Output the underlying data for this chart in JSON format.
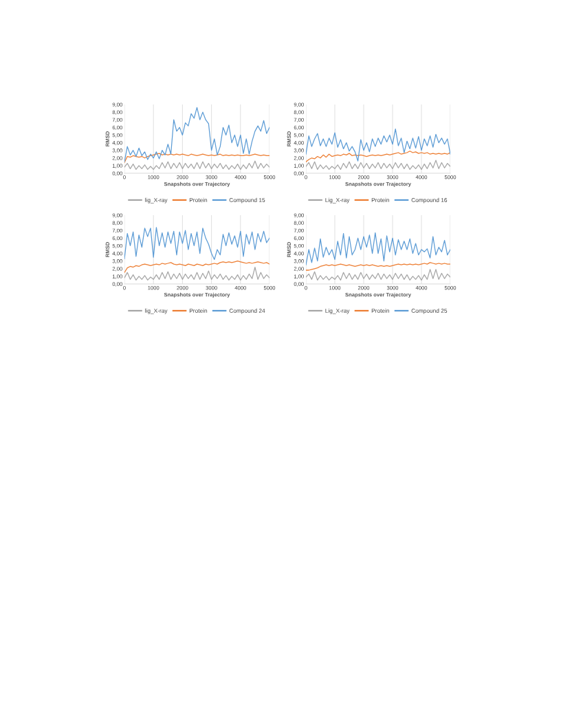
{
  "chart_data": [
    {
      "type": "line",
      "xlabel": "Snapshots over Trajectory",
      "ylabel": "RMSD",
      "x": [
        0,
        100,
        200,
        300,
        400,
        500,
        600,
        700,
        800,
        900,
        1000,
        1100,
        1200,
        1300,
        1400,
        1500,
        1600,
        1700,
        1800,
        1900,
        2000,
        2100,
        2200,
        2300,
        2400,
        2500,
        2600,
        2700,
        2800,
        2900,
        3000,
        3100,
        3200,
        3300,
        3400,
        3500,
        3600,
        3700,
        3800,
        3900,
        4000,
        4100,
        4200,
        4300,
        4400,
        4500,
        4600,
        4700,
        4800,
        4900,
        5000
      ],
      "xlim": [
        0,
        5000
      ],
      "xticks": [
        0,
        1000,
        2000,
        3000,
        4000,
        5000
      ],
      "ylim": [
        0,
        9
      ],
      "yticks": [
        {
          "value": 0,
          "label": "0,00"
        },
        {
          "value": 1,
          "label": "1,00"
        },
        {
          "value": 2,
          "label": "2,00"
        },
        {
          "value": 3,
          "label": "3,00"
        },
        {
          "value": 4,
          "label": "4,00"
        },
        {
          "value": 5,
          "label": "5,00"
        },
        {
          "value": 6,
          "label": "6,00"
        },
        {
          "value": 7,
          "label": "7,00"
        },
        {
          "value": 8,
          "label": "8,00"
        },
        {
          "value": 9,
          "label": "9,00"
        }
      ],
      "grid": "x",
      "legend": "bottom",
      "marker": "none",
      "line_style": "solid",
      "series": [
        {
          "name": "lig_X-ray",
          "color": "#a5a5a5",
          "values": [
            0.8,
            1.3,
            0.6,
            1.2,
            0.5,
            1.0,
            0.6,
            1.1,
            0.5,
            0.9,
            0.5,
            1.0,
            0.6,
            1.4,
            0.7,
            1.5,
            0.6,
            1.3,
            0.7,
            1.4,
            0.6,
            1.3,
            0.7,
            1.2,
            0.6,
            1.4,
            0.6,
            1.5,
            0.7,
            1.3,
            0.6,
            1.2,
            0.7,
            1.3,
            0.6,
            1.1,
            0.5,
            1.0,
            0.6,
            1.2,
            0.5,
            1.1,
            0.6,
            1.3,
            0.7,
            1.6,
            0.6,
            1.3,
            0.7,
            1.2,
            0.8
          ]
        },
        {
          "name": "Protein",
          "color": "#ed7d31",
          "values": [
            1.4,
            2.2,
            2.1,
            2.3,
            2.2,
            2.1,
            2.2,
            2.0,
            2.2,
            2.3,
            2.4,
            2.5,
            2.6,
            2.4,
            2.5,
            2.4,
            2.5,
            2.4,
            2.5,
            2.4,
            2.5,
            2.4,
            2.3,
            2.5,
            2.4,
            2.3,
            2.4,
            2.5,
            2.4,
            2.3,
            2.4,
            2.3,
            2.4,
            2.5,
            2.3,
            2.4,
            2.3,
            2.4,
            2.3,
            2.4,
            2.3,
            2.3,
            2.4,
            2.3,
            2.4,
            2.5,
            2.4,
            2.3,
            2.4,
            2.3,
            2.3
          ]
        },
        {
          "name": "Compound 15",
          "color": "#5b9bd5",
          "values": [
            1.5,
            3.5,
            2.4,
            3.0,
            2.2,
            3.3,
            2.3,
            2.8,
            1.8,
            2.5,
            2.0,
            2.8,
            1.9,
            3.0,
            2.4,
            3.8,
            2.5,
            7.0,
            5.5,
            6.0,
            5.0,
            6.6,
            6.2,
            7.8,
            7.2,
            8.6,
            7.0,
            8.0,
            7.0,
            6.5,
            3.0,
            4.5,
            2.4,
            3.5,
            6.0,
            5.0,
            6.3,
            4.0,
            5.0,
            3.5,
            5.0,
            2.6,
            4.5,
            2.5,
            4.2,
            5.5,
            6.2,
            5.5,
            6.9,
            5.2,
            6.0
          ]
        }
      ]
    },
    {
      "type": "line",
      "xlabel": "Snapshots over Trajectory",
      "ylabel": "RMSD",
      "x": [
        0,
        100,
        200,
        300,
        400,
        500,
        600,
        700,
        800,
        900,
        1000,
        1100,
        1200,
        1300,
        1400,
        1500,
        1600,
        1700,
        1800,
        1900,
        2000,
        2100,
        2200,
        2300,
        2400,
        2500,
        2600,
        2700,
        2800,
        2900,
        3000,
        3100,
        3200,
        3300,
        3400,
        3500,
        3600,
        3700,
        3800,
        3900,
        4000,
        4100,
        4200,
        4300,
        4400,
        4500,
        4600,
        4700,
        4800,
        4900,
        5000
      ],
      "xlim": [
        0,
        5000
      ],
      "xticks": [
        0,
        1000,
        2000,
        3000,
        4000,
        5000
      ],
      "ylim": [
        0,
        9
      ],
      "yticks": [
        {
          "value": 0,
          "label": "0,00"
        },
        {
          "value": 1,
          "label": "1,00"
        },
        {
          "value": 2,
          "label": "2,00"
        },
        {
          "value": 3,
          "label": "3,00"
        },
        {
          "value": 4,
          "label": "4,00"
        },
        {
          "value": 5,
          "label": "5,00"
        },
        {
          "value": 6,
          "label": "6,00"
        },
        {
          "value": 7,
          "label": "7,00"
        },
        {
          "value": 8,
          "label": "8,00"
        },
        {
          "value": 9,
          "label": "9,00"
        }
      ],
      "grid": "x",
      "legend": "bottom",
      "marker": "none",
      "line_style": "solid",
      "series": [
        {
          "name": "Lig_X-ray",
          "color": "#a5a5a5",
          "values": [
            0.9,
            1.4,
            0.6,
            1.5,
            0.5,
            1.1,
            0.6,
            1.0,
            0.5,
            0.9,
            0.6,
            1.1,
            0.5,
            1.3,
            0.7,
            1.5,
            0.6,
            1.2,
            0.6,
            1.4,
            0.7,
            1.3,
            0.6,
            1.2,
            0.7,
            1.4,
            0.6,
            1.3,
            0.7,
            1.2,
            0.6,
            1.4,
            0.7,
            1.3,
            0.6,
            1.2,
            0.5,
            1.0,
            0.6,
            1.1,
            0.5,
            1.2,
            0.6,
            1.4,
            0.7,
            1.7,
            0.6,
            1.4,
            0.7,
            1.3,
            0.9
          ]
        },
        {
          "name": "Protein",
          "color": "#ed7d31",
          "values": [
            1.5,
            1.8,
            2.0,
            1.9,
            2.2,
            2.0,
            2.4,
            2.1,
            2.5,
            2.2,
            2.3,
            2.4,
            2.3,
            2.5,
            2.4,
            2.6,
            2.3,
            2.4,
            2.3,
            2.4,
            2.3,
            2.2,
            2.3,
            2.4,
            2.3,
            2.4,
            2.3,
            2.4,
            2.5,
            2.4,
            2.5,
            2.6,
            2.7,
            2.5,
            2.6,
            2.7,
            2.9,
            2.7,
            2.8,
            2.6,
            2.7,
            2.6,
            2.7,
            2.5,
            2.6,
            2.5,
            2.6,
            2.5,
            2.6,
            2.5,
            2.7
          ]
        },
        {
          "name": "Compound 16",
          "color": "#5b9bd5",
          "values": [
            2.5,
            4.9,
            3.5,
            4.5,
            5.2,
            3.6,
            4.5,
            3.5,
            4.6,
            3.8,
            5.3,
            3.4,
            4.4,
            3.2,
            4.0,
            2.9,
            3.5,
            2.8,
            1.6,
            4.4,
            3.0,
            4.0,
            2.8,
            4.5,
            3.5,
            4.6,
            3.8,
            4.9,
            4.1,
            5.0,
            3.8,
            5.8,
            3.6,
            4.6,
            2.7,
            4.2,
            3.2,
            4.6,
            3.3,
            4.8,
            3.0,
            4.5,
            3.6,
            4.9,
            3.4,
            5.1,
            4.0,
            4.6,
            3.8,
            4.5,
            2.5
          ]
        }
      ]
    },
    {
      "type": "line",
      "xlabel": "Snapshots over Trajectory",
      "ylabel": "RMSD",
      "x": [
        0,
        100,
        200,
        300,
        400,
        500,
        600,
        700,
        800,
        900,
        1000,
        1100,
        1200,
        1300,
        1400,
        1500,
        1600,
        1700,
        1800,
        1900,
        2000,
        2100,
        2200,
        2300,
        2400,
        2500,
        2600,
        2700,
        2800,
        2900,
        3000,
        3100,
        3200,
        3300,
        3400,
        3500,
        3600,
        3700,
        3800,
        3900,
        4000,
        4100,
        4200,
        4300,
        4400,
        4500,
        4600,
        4700,
        4800,
        4900,
        5000
      ],
      "xlim": [
        0,
        5000
      ],
      "xticks": [
        0,
        1000,
        2000,
        3000,
        4000,
        5000
      ],
      "ylim": [
        0,
        9
      ],
      "yticks": [
        {
          "value": 0,
          "label": "0,00"
        },
        {
          "value": 1,
          "label": "1,00"
        },
        {
          "value": 2,
          "label": "2,00"
        },
        {
          "value": 3,
          "label": "3,00"
        },
        {
          "value": 4,
          "label": "4,00"
        },
        {
          "value": 5,
          "label": "5,00"
        },
        {
          "value": 6,
          "label": "6,00"
        },
        {
          "value": 7,
          "label": "7,00"
        },
        {
          "value": 8,
          "label": "8,00"
        },
        {
          "value": 9,
          "label": "9,00"
        }
      ],
      "grid": "x",
      "legend": "bottom",
      "marker": "none",
      "line_style": "solid",
      "series": [
        {
          "name": "lig_X-ray",
          "color": "#a5a5a5",
          "values": [
            0.8,
            1.5,
            0.6,
            1.2,
            0.5,
            1.0,
            0.6,
            1.1,
            0.5,
            0.9,
            0.6,
            1.2,
            0.6,
            1.5,
            0.7,
            1.6,
            0.6,
            1.3,
            0.7,
            1.4,
            0.6,
            1.3,
            0.7,
            1.2,
            0.6,
            1.5,
            0.6,
            1.4,
            0.7,
            1.7,
            0.6,
            1.2,
            0.7,
            1.3,
            0.6,
            1.1,
            0.5,
            1.0,
            0.6,
            1.2,
            0.5,
            1.1,
            0.6,
            1.3,
            0.7,
            2.2,
            0.6,
            1.5,
            0.7,
            1.2,
            0.8
          ]
        },
        {
          "name": "Protein",
          "color": "#ed7d31",
          "values": [
            1.5,
            2.1,
            2.3,
            2.2,
            2.4,
            2.3,
            2.5,
            2.6,
            2.5,
            2.4,
            2.5,
            2.6,
            2.5,
            2.7,
            2.6,
            2.7,
            2.8,
            2.6,
            2.5,
            2.6,
            2.5,
            2.4,
            2.6,
            2.5,
            2.4,
            2.6,
            2.5,
            2.4,
            2.6,
            2.5,
            2.6,
            2.7,
            2.6,
            2.8,
            2.9,
            2.8,
            2.9,
            2.8,
            2.9,
            3.0,
            2.9,
            2.8,
            2.7,
            2.8,
            2.7,
            2.8,
            2.9,
            2.8,
            2.7,
            2.8,
            2.6
          ]
        },
        {
          "name": "Compound 24",
          "color": "#5b9bd5",
          "values": [
            3.3,
            6.6,
            5.0,
            6.8,
            3.6,
            6.4,
            4.8,
            7.3,
            6.2,
            7.3,
            3.5,
            7.4,
            5.0,
            6.7,
            4.8,
            6.8,
            5.3,
            6.9,
            3.8,
            6.8,
            5.3,
            7.0,
            4.5,
            6.6,
            5.0,
            6.8,
            4.0,
            7.3,
            6.0,
            5.2,
            4.0,
            3.2,
            4.5,
            3.8,
            6.5,
            5.0,
            6.7,
            5.2,
            6.3,
            4.8,
            6.9,
            3.6,
            6.5,
            5.2,
            6.8,
            4.5,
            6.6,
            5.5,
            6.9,
            5.4,
            6.0
          ]
        }
      ]
    },
    {
      "type": "line",
      "xlabel": "Snapshots over Trajectory",
      "ylabel": "RMSD",
      "x": [
        0,
        100,
        200,
        300,
        400,
        500,
        600,
        700,
        800,
        900,
        1000,
        1100,
        1200,
        1300,
        1400,
        1500,
        1600,
        1700,
        1800,
        1900,
        2000,
        2100,
        2200,
        2300,
        2400,
        2500,
        2600,
        2700,
        2800,
        2900,
        3000,
        3100,
        3200,
        3300,
        3400,
        3500,
        3600,
        3700,
        3800,
        3900,
        4000,
        4100,
        4200,
        4300,
        4400,
        4500,
        4600,
        4700,
        4800,
        4900,
        5000
      ],
      "xlim": [
        0,
        5000
      ],
      "xticks": [
        0,
        1000,
        2000,
        3000,
        4000,
        5000
      ],
      "ylim": [
        0,
        9
      ],
      "yticks": [
        {
          "value": 0,
          "label": "0,00"
        },
        {
          "value": 1,
          "label": "1,00"
        },
        {
          "value": 2,
          "label": "2,00"
        },
        {
          "value": 3,
          "label": "3,00"
        },
        {
          "value": 4,
          "label": "4,00"
        },
        {
          "value": 5,
          "label": "5,00"
        },
        {
          "value": 6,
          "label": "6,00"
        },
        {
          "value": 7,
          "label": "7,00"
        },
        {
          "value": 8,
          "label": "8,00"
        },
        {
          "value": 9,
          "label": "9,00"
        }
      ],
      "grid": "x",
      "legend": "bottom",
      "marker": "none",
      "line_style": "solid",
      "series": [
        {
          "name": "Lig_X-ray",
          "color": "#a5a5a5",
          "values": [
            0.9,
            1.3,
            0.6,
            1.6,
            0.5,
            1.1,
            0.6,
            1.0,
            0.5,
            0.9,
            0.6,
            1.1,
            0.5,
            1.5,
            0.7,
            1.4,
            0.6,
            1.2,
            0.6,
            1.5,
            0.7,
            1.3,
            0.6,
            1.2,
            0.7,
            1.4,
            0.6,
            1.3,
            0.7,
            1.2,
            0.6,
            1.4,
            0.7,
            1.3,
            0.6,
            1.2,
            0.5,
            1.0,
            0.6,
            1.1,
            0.5,
            1.2,
            0.6,
            1.9,
            0.7,
            1.9,
            0.6,
            1.4,
            0.7,
            1.3,
            0.9
          ]
        },
        {
          "name": "Protein",
          "color": "#ed7d31",
          "values": [
            1.8,
            1.8,
            1.9,
            2.0,
            2.1,
            2.3,
            2.4,
            2.5,
            2.4,
            2.5,
            2.4,
            2.5,
            2.6,
            2.5,
            2.4,
            2.5,
            2.4,
            2.3,
            2.4,
            2.5,
            2.4,
            2.5,
            2.4,
            2.5,
            2.4,
            2.3,
            2.4,
            2.3,
            2.4,
            2.3,
            2.4,
            2.5,
            2.6,
            2.5,
            2.6,
            2.5,
            2.6,
            2.5,
            2.6,
            2.5,
            2.6,
            2.7,
            2.6,
            2.8,
            2.7,
            2.6,
            2.7,
            2.6,
            2.7,
            2.6,
            2.6
          ]
        },
        {
          "name": "Compound 25",
          "color": "#5b9bd5",
          "values": [
            2.5,
            4.5,
            2.8,
            4.7,
            3.0,
            5.9,
            3.5,
            4.8,
            3.8,
            4.5,
            3.2,
            5.6,
            3.8,
            6.6,
            3.4,
            6.2,
            3.8,
            4.5,
            6.0,
            4.5,
            6.2,
            4.8,
            6.4,
            4.0,
            6.7,
            4.0,
            5.9,
            3.0,
            6.3,
            4.2,
            6.0,
            3.8,
            5.8,
            4.5,
            5.6,
            4.5,
            5.9,
            4.0,
            5.3,
            3.8,
            4.5,
            4.2,
            4.6,
            3.4,
            6.2,
            3.8,
            4.8,
            4.2,
            5.7,
            3.8,
            4.5
          ]
        }
      ]
    }
  ]
}
